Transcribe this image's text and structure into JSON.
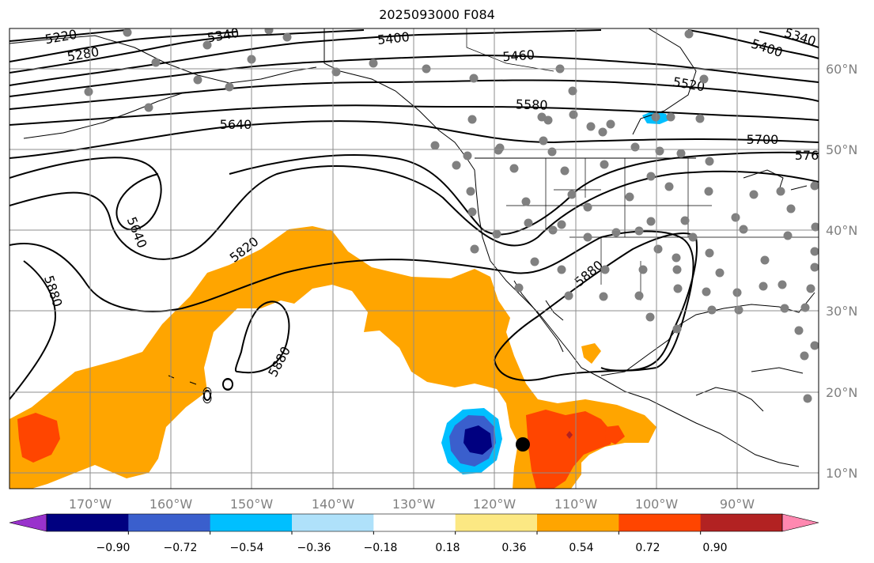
{
  "title": "2025093000 F084",
  "map": {
    "lon_labels": [
      "170°W",
      "160°W",
      "150°W",
      "140°W",
      "130°W",
      "120°W",
      "110°W",
      "100°W",
      "90°W"
    ],
    "lat_labels": [
      "60°N",
      "50°N",
      "40°N",
      "30°N",
      "20°N",
      "10°N"
    ],
    "height_contour_labels": [
      "5220",
      "5280",
      "5340",
      "5400",
      "5460",
      "5520",
      "5580",
      "5640",
      "5700",
      "576",
      "5640",
      "5820",
      "5880",
      "5880",
      "5880",
      "5400",
      "5340"
    ],
    "grid_color": "#8c8c8c",
    "fill_color_positive": "#ffa500",
    "fill_color_negative": "#0000a0",
    "station_marker_color": "#808080",
    "storm_marker_color": "#000000"
  },
  "colorbar": {
    "tick_labels": [
      "−0.90",
      "−0.72",
      "−0.54",
      "−0.36",
      "−0.18",
      "0.18",
      "0.36",
      "0.54",
      "0.72",
      "0.90"
    ],
    "colors": [
      "#9932cc",
      "#000080",
      "#3a5fcd",
      "#00bfff",
      "#afe1fa",
      "#ffffff",
      "#fce883",
      "#ffa500",
      "#ff4500",
      "#b22222",
      "#ff88b0"
    ]
  }
}
